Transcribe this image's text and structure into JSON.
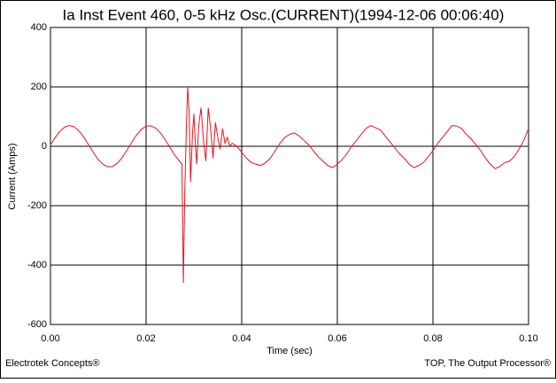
{
  "chart_data": {
    "type": "line",
    "title": "Ia Inst Event 460, 0-5 kHz Osc.(CURRENT)(1994-12-06 00:06:40)",
    "x_label": "Time (sec)",
    "y_label": "Current (Amps)",
    "footer_left": "Electrotek Concepts®",
    "footer_right": "TOP, The Output Processor®",
    "xlim": [
      0,
      0.1
    ],
    "ylim": [
      -600,
      400
    ],
    "xticks": [
      {
        "value": 0,
        "label": "0.00"
      },
      {
        "value": 0.02,
        "label": "0.02"
      },
      {
        "value": 0.04,
        "label": "0.04"
      },
      {
        "value": 0.06,
        "label": "0.06"
      },
      {
        "value": 0.08,
        "label": "0.08"
      },
      {
        "value": 0.1,
        "label": "0.10"
      }
    ],
    "yticks": [
      -600,
      -400,
      -200,
      0,
      200,
      400
    ],
    "grid": true,
    "series": [
      {
        "color": "#e8141c",
        "x": [
          0,
          0.001,
          0.002,
          0.003,
          0.004,
          0.005,
          0.006,
          0.007,
          0.008,
          0.009,
          0.01,
          0.011,
          0.012,
          0.013,
          0.014,
          0.015,
          0.016,
          0.017,
          0.018,
          0.019,
          0.02,
          0.021,
          0.022,
          0.023,
          0.024,
          0.025,
          0.026,
          0.027,
          0.0275,
          0.0278,
          0.0281,
          0.0284,
          0.0287,
          0.029,
          0.0293,
          0.0297,
          0.03,
          0.0303,
          0.0306,
          0.031,
          0.0315,
          0.032,
          0.0325,
          0.033,
          0.0335,
          0.034,
          0.0345,
          0.035,
          0.0355,
          0.036,
          0.0365,
          0.037,
          0.0375,
          0.038,
          0.039,
          0.04,
          0.041,
          0.042,
          0.043,
          0.044,
          0.045,
          0.046,
          0.047,
          0.048,
          0.049,
          0.05,
          0.051,
          0.052,
          0.053,
          0.054,
          0.055,
          0.056,
          0.057,
          0.058,
          0.059,
          0.06,
          0.061,
          0.062,
          0.063,
          0.064,
          0.065,
          0.066,
          0.067,
          0.068,
          0.069,
          0.07,
          0.071,
          0.072,
          0.073,
          0.074,
          0.075,
          0.076,
          0.077,
          0.078,
          0.079,
          0.08,
          0.081,
          0.082,
          0.083,
          0.084,
          0.085,
          0.086,
          0.087,
          0.088,
          0.089,
          0.09,
          0.091,
          0.092,
          0.093,
          0.094,
          0.095,
          0.096,
          0.097,
          0.098,
          0.099,
          0.1
        ],
        "values": [
          4,
          30,
          51,
          65,
          70,
          65,
          51,
          30,
          4,
          -22,
          -45,
          -61,
          -69,
          -68,
          -57,
          -38,
          -13,
          13,
          38,
          57,
          68,
          69,
          61,
          45,
          22,
          -4,
          -30,
          -50,
          -60,
          -460,
          -150,
          50,
          200,
          120,
          -120,
          40,
          110,
          10,
          -60,
          70,
          130,
          20,
          -50,
          130,
          60,
          -40,
          80,
          30,
          -10,
          60,
          10,
          30,
          0,
          10,
          0,
          -20,
          -40,
          -55,
          -60,
          -65,
          -55,
          -40,
          -15,
          10,
          30,
          40,
          45,
          35,
          20,
          5,
          -15,
          -35,
          -50,
          -65,
          -72,
          -60,
          -45,
          -25,
          0,
          20,
          40,
          60,
          70,
          62,
          55,
          35,
          15,
          -5,
          -25,
          -40,
          -60,
          -72,
          -65,
          -55,
          -35,
          -15,
          10,
          30,
          50,
          70,
          68,
          60,
          40,
          25,
          5,
          -15,
          -40,
          -60,
          -75,
          -68,
          -55,
          -50,
          -35,
          -10,
          20,
          60
        ]
      }
    ]
  }
}
